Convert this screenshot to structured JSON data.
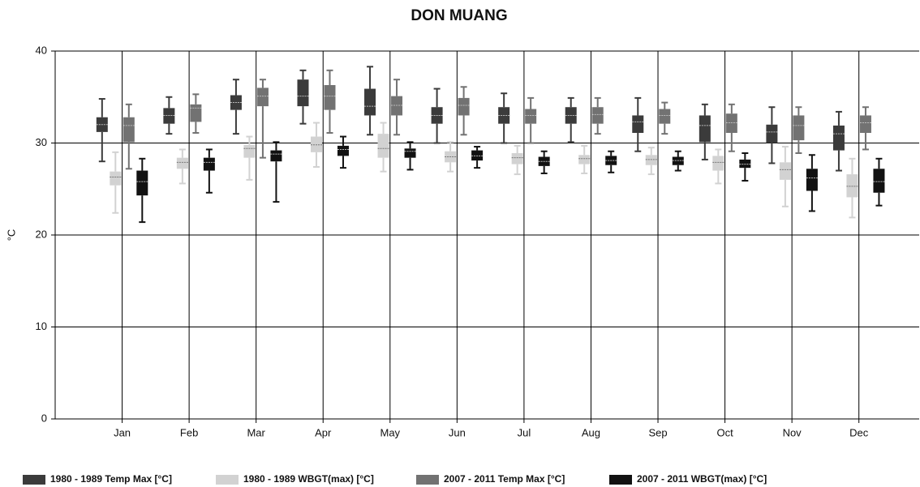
{
  "chart_data": {
    "type": "box",
    "title": "DON MUANG",
    "y_label": "°C",
    "categories": [
      "Jan",
      "Feb",
      "Mar",
      "Apr",
      "May",
      "Jun",
      "Jul",
      "Aug",
      "Sep",
      "Oct",
      "Nov",
      "Dec"
    ],
    "ylim": [
      0,
      40
    ],
    "yticks": [
      0,
      10,
      20,
      30,
      40
    ],
    "grid": true,
    "legend": "bottom",
    "series": [
      {
        "name": "1980 - 1989 Temp Max [°C]",
        "color": "#3b3b3b",
        "low": [
          28,
          31,
          31,
          32.1,
          30.9,
          30,
          30,
          30.1,
          29.1,
          28.2,
          27.8,
          27
        ],
        "q1": [
          31.2,
          32.1,
          33.6,
          34,
          33,
          32.1,
          32.1,
          32.1,
          31.1,
          30.1,
          30,
          29.2
        ],
        "median": [
          32,
          33,
          34.4,
          35.1,
          34,
          33,
          33,
          33,
          32.3,
          31.9,
          31.2,
          31
        ],
        "q3": [
          32.8,
          33.8,
          35.2,
          36.9,
          35.9,
          33.9,
          33.9,
          33.9,
          33,
          33,
          32,
          31.9
        ],
        "high": [
          34.8,
          35,
          36.9,
          37.9,
          38.3,
          35.9,
          35.4,
          34.9,
          34.9,
          34.2,
          33.9,
          33.4
        ]
      },
      {
        "name": "1980 - 1989 WBGT(max) [°C]",
        "color": "#d2d2d2",
        "low": [
          22.4,
          25.6,
          26,
          27.4,
          26.9,
          26.9,
          26.6,
          26.7,
          26.6,
          25.6,
          23.1,
          21.9
        ],
        "q1": [
          25.4,
          27.2,
          28.4,
          29,
          28.4,
          27.9,
          27.7,
          27.7,
          27.6,
          27,
          26,
          24.1
        ],
        "median": [
          26.3,
          27.9,
          29.4,
          29.8,
          29.4,
          28.5,
          28.4,
          28.3,
          28.2,
          27.9,
          27.1,
          25.3
        ],
        "q3": [
          26.9,
          28.4,
          29.8,
          30.7,
          31,
          29.1,
          28.9,
          28.7,
          28.7,
          28.6,
          27.9,
          26.6
        ],
        "high": [
          29,
          29.3,
          30.7,
          32.2,
          32.2,
          30.1,
          29.7,
          29.7,
          29.5,
          29.3,
          29.6,
          28.3
        ]
      },
      {
        "name": "2007 - 2011 Temp Max [°C]",
        "color": "#727272",
        "low": [
          27.2,
          31.1,
          28.4,
          31.1,
          30.9,
          30.9,
          30,
          31,
          31,
          29.1,
          28.9,
          29.3
        ],
        "q1": [
          30.1,
          32.3,
          34,
          33.6,
          33,
          33,
          32.1,
          32.1,
          32.1,
          31.1,
          30.3,
          31.1
        ],
        "median": [
          31.9,
          33.8,
          35.1,
          35.1,
          34.1,
          34.1,
          33,
          33.1,
          33,
          32.2,
          31.9,
          32.2
        ],
        "q3": [
          32.8,
          34.2,
          36,
          36.3,
          35.1,
          34.9,
          33.7,
          33.9,
          33.7,
          33.2,
          33,
          33
        ],
        "high": [
          34.2,
          35.3,
          36.9,
          37.9,
          36.9,
          36.1,
          34.9,
          34.9,
          34.4,
          34.2,
          33.9,
          33.9
        ]
      },
      {
        "name": "2007 - 2011 WBGT(max) [°C]",
        "color": "#121212",
        "low": [
          21.4,
          24.6,
          23.6,
          27.3,
          27.1,
          27.3,
          26.7,
          26.8,
          27,
          25.9,
          22.6,
          23.2
        ],
        "q1": [
          24.3,
          27,
          28,
          28.6,
          28.4,
          28.1,
          27.5,
          27.6,
          27.6,
          27.3,
          24.8,
          24.6
        ],
        "median": [
          25.8,
          27.9,
          28.8,
          29.3,
          29.1,
          28.6,
          28,
          28.1,
          28.1,
          27.7,
          26.2,
          25.8
        ],
        "q3": [
          27,
          28.4,
          29.2,
          29.7,
          29.4,
          29.2,
          28.5,
          28.6,
          28.5,
          28.2,
          27.2,
          27.2
        ],
        "high": [
          28.3,
          29.3,
          30.1,
          30.7,
          30.1,
          29.6,
          29.1,
          29.1,
          29.1,
          28.9,
          28.7,
          28.3
        ]
      }
    ]
  }
}
